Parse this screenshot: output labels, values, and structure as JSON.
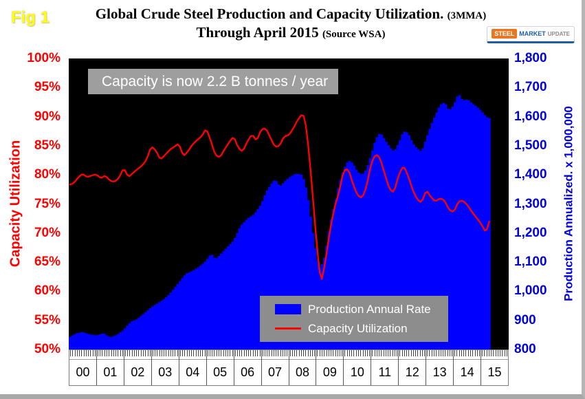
{
  "figure_label": "Fig 1",
  "title": {
    "line1": "Global Crude Steel Production and Capacity Utilization.",
    "line1_suffix": "(3MMA)",
    "line2": "Through April 2015",
    "line2_suffix": "(Source WSA)"
  },
  "logo": {
    "steel": "STEEL",
    "market": "MARKET",
    "update": "UPDATE"
  },
  "annotation": "Capacity is now 2.2 B tonnes / year",
  "legend": [
    {
      "label": "Production Annual Rate",
      "color": "#0000ff",
      "type": "area"
    },
    {
      "label": "Capacity Utilization",
      "color": "#ff0000",
      "type": "line"
    }
  ],
  "left_axis": {
    "title": "Capacity Utilization",
    "color": "#ff0000",
    "ticks": [
      "100%",
      "95%",
      "90%",
      "85%",
      "80%",
      "75%",
      "70%",
      "65%",
      "60%",
      "55%",
      "50%"
    ]
  },
  "right_axis": {
    "title": "Production Annualized. x 1,000,000",
    "color": "#0000dd",
    "ticks": [
      "1,800",
      "1,700",
      "1,600",
      "1,500",
      "1,400",
      "1,300",
      "1,200",
      "1,100",
      "1,000",
      "900",
      "800"
    ]
  },
  "x_axis": {
    "years": [
      "00",
      "01",
      "02",
      "03",
      "04",
      "05",
      "06",
      "07",
      "08",
      "09",
      "10",
      "11",
      "12",
      "13",
      "14",
      "15"
    ]
  },
  "chart_data": {
    "type": "line",
    "title": "Global Crude Steel Production and Capacity Utilization (3MMA) Through April 2015",
    "x_domain": [
      2000,
      2016
    ],
    "data_end_x": 2015.333,
    "grid": false,
    "plot_background": "#000000",
    "left_axis": {
      "label": "Capacity Utilization",
      "range": [
        50,
        100
      ],
      "unit": "%"
    },
    "right_axis": {
      "label": "Production Annualized. x 1,000,000",
      "range": [
        800,
        1800
      ]
    },
    "series": [
      {
        "name": "Production Annual Rate",
        "type": "bar",
        "axis": "right",
        "color": "#0000ff",
        "points": [
          [
            2000.0,
            840
          ],
          [
            2000.25,
            855
          ],
          [
            2000.5,
            860
          ],
          [
            2000.75,
            852
          ],
          [
            2001.0,
            848
          ],
          [
            2001.25,
            856
          ],
          [
            2001.5,
            842
          ],
          [
            2001.75,
            850
          ],
          [
            2002.0,
            868
          ],
          [
            2002.25,
            895
          ],
          [
            2002.5,
            905
          ],
          [
            2002.75,
            925
          ],
          [
            2003.0,
            945
          ],
          [
            2003.25,
            960
          ],
          [
            2003.5,
            975
          ],
          [
            2003.75,
            1000
          ],
          [
            2004.0,
            1030
          ],
          [
            2004.25,
            1060
          ],
          [
            2004.5,
            1070
          ],
          [
            2004.75,
            1085
          ],
          [
            2005.0,
            1105
          ],
          [
            2005.17,
            1130
          ],
          [
            2005.33,
            1110
          ],
          [
            2005.5,
            1125
          ],
          [
            2005.75,
            1150
          ],
          [
            2006.0,
            1175
          ],
          [
            2006.25,
            1225
          ],
          [
            2006.5,
            1250
          ],
          [
            2006.75,
            1265
          ],
          [
            2007.0,
            1300
          ],
          [
            2007.17,
            1340
          ],
          [
            2007.33,
            1365
          ],
          [
            2007.5,
            1385
          ],
          [
            2007.67,
            1360
          ],
          [
            2007.83,
            1375
          ],
          [
            2008.0,
            1390
          ],
          [
            2008.25,
            1405
          ],
          [
            2008.5,
            1400
          ],
          [
            2008.67,
            1340
          ],
          [
            2008.83,
            1230
          ],
          [
            2009.0,
            1120
          ],
          [
            2009.13,
            1080
          ],
          [
            2009.25,
            1100
          ],
          [
            2009.33,
            1130
          ],
          [
            2009.5,
            1230
          ],
          [
            2009.67,
            1300
          ],
          [
            2009.83,
            1370
          ],
          [
            2010.0,
            1420
          ],
          [
            2010.17,
            1450
          ],
          [
            2010.33,
            1440
          ],
          [
            2010.5,
            1410
          ],
          [
            2010.67,
            1400
          ],
          [
            2010.83,
            1420
          ],
          [
            2011.0,
            1470
          ],
          [
            2011.17,
            1525
          ],
          [
            2011.33,
            1545
          ],
          [
            2011.5,
            1520
          ],
          [
            2011.67,
            1495
          ],
          [
            2011.83,
            1480
          ],
          [
            2012.0,
            1510
          ],
          [
            2012.17,
            1550
          ],
          [
            2012.33,
            1545
          ],
          [
            2012.5,
            1510
          ],
          [
            2012.67,
            1490
          ],
          [
            2012.83,
            1480
          ],
          [
            2013.0,
            1525
          ],
          [
            2013.17,
            1570
          ],
          [
            2013.33,
            1605
          ],
          [
            2013.5,
            1640
          ],
          [
            2013.67,
            1650
          ],
          [
            2013.83,
            1620
          ],
          [
            2014.0,
            1640
          ],
          [
            2014.17,
            1680
          ],
          [
            2014.33,
            1655
          ],
          [
            2014.5,
            1660
          ],
          [
            2014.67,
            1645
          ],
          [
            2014.83,
            1635
          ],
          [
            2015.0,
            1620
          ],
          [
            2015.17,
            1600
          ],
          [
            2015.29,
            1595
          ]
        ]
      },
      {
        "name": "Capacity Utilization",
        "type": "line",
        "axis": "left",
        "color": "#ff0000",
        "points": [
          [
            2000.0,
            78.3
          ],
          [
            2000.17,
            78.5
          ],
          [
            2000.33,
            79.5
          ],
          [
            2000.5,
            80.2
          ],
          [
            2000.67,
            79.6
          ],
          [
            2000.83,
            79.9
          ],
          [
            2001.0,
            80.1
          ],
          [
            2001.17,
            79.4
          ],
          [
            2001.33,
            79.9
          ],
          [
            2001.5,
            79.0
          ],
          [
            2001.67,
            78.8
          ],
          [
            2001.83,
            79.5
          ],
          [
            2002.0,
            81.2
          ],
          [
            2002.17,
            79.6
          ],
          [
            2002.33,
            80.3
          ],
          [
            2002.5,
            81.0
          ],
          [
            2002.67,
            81.6
          ],
          [
            2002.83,
            82.6
          ],
          [
            2003.0,
            84.9
          ],
          [
            2003.17,
            84.2
          ],
          [
            2003.33,
            82.6
          ],
          [
            2003.5,
            83.4
          ],
          [
            2003.67,
            84.3
          ],
          [
            2003.83,
            84.8
          ],
          [
            2004.0,
            85.4
          ],
          [
            2004.17,
            83.2
          ],
          [
            2004.33,
            84.0
          ],
          [
            2004.5,
            85.2
          ],
          [
            2004.67,
            86.0
          ],
          [
            2004.83,
            86.6
          ],
          [
            2005.0,
            88.0
          ],
          [
            2005.17,
            85.8
          ],
          [
            2005.33,
            83.4
          ],
          [
            2005.5,
            83.0
          ],
          [
            2005.67,
            84.4
          ],
          [
            2005.83,
            85.6
          ],
          [
            2006.0,
            86.6
          ],
          [
            2006.17,
            84.6
          ],
          [
            2006.33,
            84.0
          ],
          [
            2006.5,
            85.8
          ],
          [
            2006.67,
            87.0
          ],
          [
            2006.83,
            85.8
          ],
          [
            2007.0,
            87.8
          ],
          [
            2007.17,
            88.0
          ],
          [
            2007.33,
            86.4
          ],
          [
            2007.5,
            84.8
          ],
          [
            2007.67,
            85.0
          ],
          [
            2007.83,
            86.6
          ],
          [
            2008.0,
            86.8
          ],
          [
            2008.17,
            88.0
          ],
          [
            2008.33,
            89.5
          ],
          [
            2008.5,
            90.5
          ],
          [
            2008.58,
            89.8
          ],
          [
            2008.67,
            87.0
          ],
          [
            2008.83,
            79.0
          ],
          [
            2009.0,
            69.0
          ],
          [
            2009.17,
            61.2
          ],
          [
            2009.33,
            65.0
          ],
          [
            2009.5,
            70.5
          ],
          [
            2009.67,
            74.5
          ],
          [
            2009.83,
            77.0
          ],
          [
            2010.0,
            80.8
          ],
          [
            2010.17,
            81.0
          ],
          [
            2010.33,
            78.5
          ],
          [
            2010.5,
            76.5
          ],
          [
            2010.67,
            76.0
          ],
          [
            2010.83,
            78.0
          ],
          [
            2011.0,
            82.0
          ],
          [
            2011.17,
            83.6
          ],
          [
            2011.33,
            82.8
          ],
          [
            2011.5,
            80.0
          ],
          [
            2011.67,
            77.5
          ],
          [
            2011.83,
            77.0
          ],
          [
            2012.0,
            80.0
          ],
          [
            2012.17,
            81.6
          ],
          [
            2012.33,
            80.0
          ],
          [
            2012.5,
            77.5
          ],
          [
            2012.67,
            75.8
          ],
          [
            2012.83,
            75.2
          ],
          [
            2013.0,
            77.4
          ],
          [
            2013.17,
            76.2
          ],
          [
            2013.33,
            75.4
          ],
          [
            2013.5,
            76.0
          ],
          [
            2013.67,
            75.6
          ],
          [
            2013.83,
            74.0
          ],
          [
            2014.0,
            73.6
          ],
          [
            2014.17,
            75.4
          ],
          [
            2014.33,
            75.6
          ],
          [
            2014.5,
            74.8
          ],
          [
            2014.67,
            73.6
          ],
          [
            2014.83,
            72.6
          ],
          [
            2015.0,
            71.6
          ],
          [
            2015.17,
            70.0
          ],
          [
            2015.29,
            72.0
          ]
        ]
      }
    ]
  }
}
